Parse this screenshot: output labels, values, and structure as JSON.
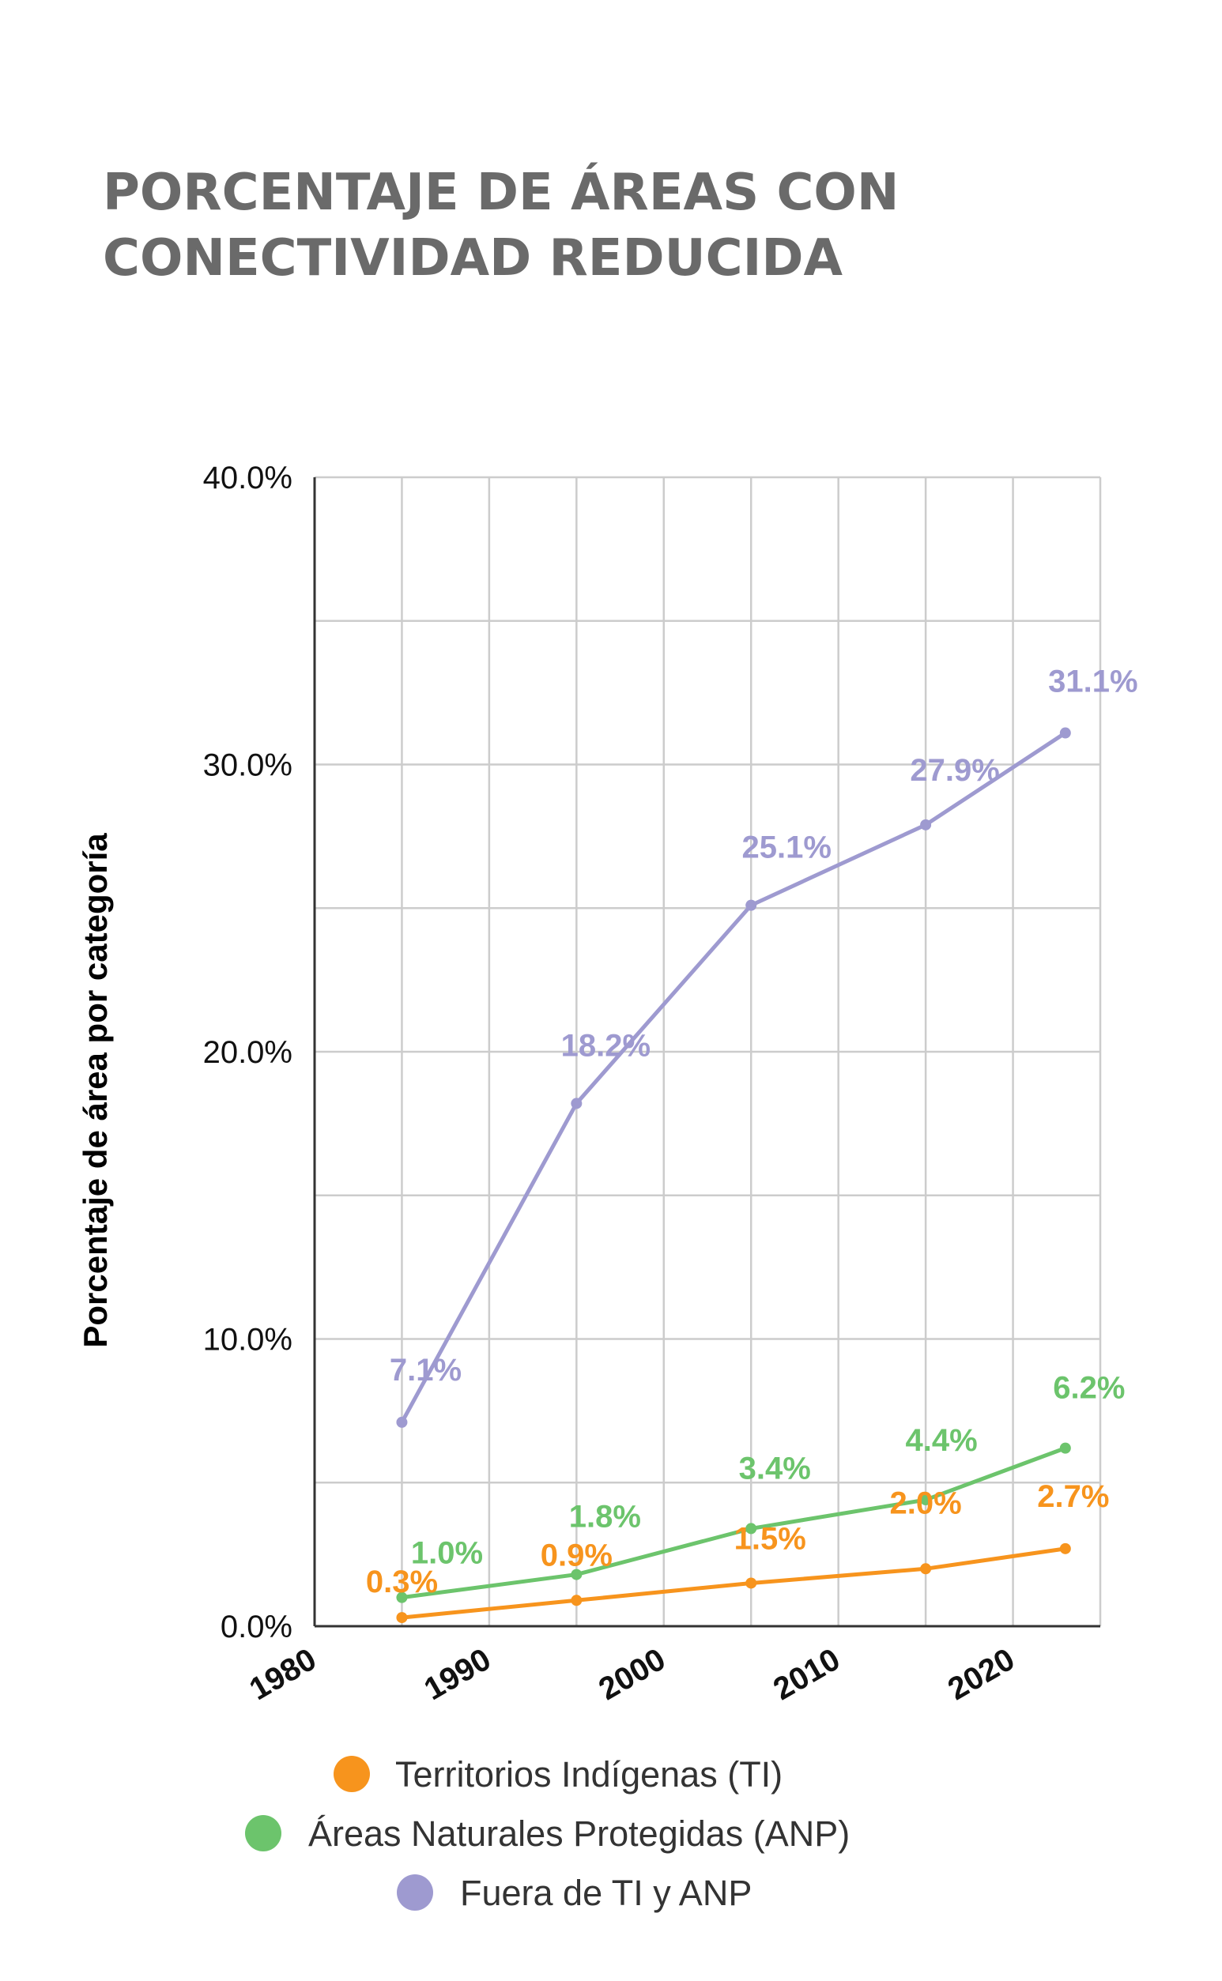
{
  "chart_data": {
    "type": "line",
    "title": [
      "PORCENTAJE DE ÁREAS CON",
      "CONECTIVIDAD REDUCIDA"
    ],
    "ylabel": "Porcentaje de área por categoría",
    "xlabel": "",
    "xlim": [
      1980,
      2025
    ],
    "ylim": [
      0,
      40
    ],
    "x_ticks": [
      1980,
      1990,
      2000,
      2010,
      2020
    ],
    "x_tick_labels": [
      "1980",
      "1990",
      "2000",
      "2010",
      "2020"
    ],
    "y_ticks": [
      0,
      10,
      20,
      30,
      40
    ],
    "y_tick_labels": [
      "0.0%",
      "10.0%",
      "20.0%",
      "30.0%",
      "40.0%"
    ],
    "x_gridlines": [
      1980,
      1985,
      1990,
      1995,
      2000,
      2005,
      2010,
      2015,
      2020,
      2025
    ],
    "y_gridlines": [
      0,
      5,
      10,
      15,
      20,
      25,
      30,
      35,
      40
    ],
    "grid": true,
    "legend_position": "bottom",
    "x": [
      1985,
      1995,
      2005,
      2015,
      2023
    ],
    "series": [
      {
        "name": "Territorios Indígenas (TI)",
        "color": "#f7941d",
        "values": [
          0.3,
          0.9,
          1.5,
          2.0,
          2.7
        ],
        "labels": [
          "0.3%",
          "0.9%",
          "1.5%",
          "2.0%",
          "2.7%"
        ]
      },
      {
        "name": "Áreas Naturales Protegidas (ANP)",
        "color": "#6cc46c",
        "values": [
          1.0,
          1.8,
          3.4,
          4.4,
          6.2
        ],
        "labels": [
          "1.0%",
          "1.8%",
          "3.4%",
          "4.4%",
          "6.2%"
        ]
      },
      {
        "name": "Fuera de TI y ANP",
        "color": "#9e9ad0",
        "values": [
          7.1,
          18.2,
          25.1,
          27.9,
          31.1
        ],
        "labels": [
          "7.1%",
          "18.2%",
          "25.1%",
          "27.9%",
          "31.1%"
        ]
      }
    ]
  }
}
